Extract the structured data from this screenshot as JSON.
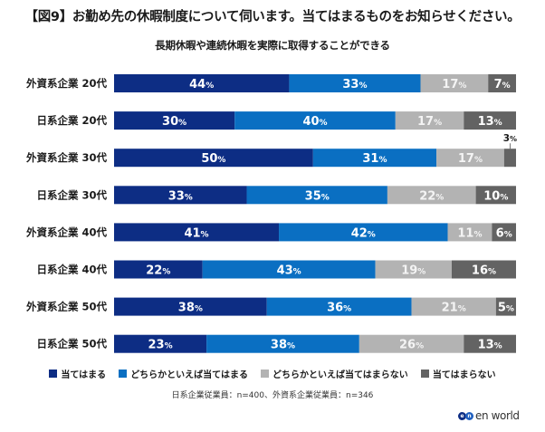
{
  "chart_data": {
    "type": "bar",
    "orientation": "horizontal-stacked-100",
    "title": "【図9】お勤め先の休暇制度について伺います。当てはまるものをお知らせください。",
    "subtitle": "長期休暇や連続休暇を実際に取得することができる",
    "xlabel": "",
    "ylabel": "",
    "xlim": [
      0,
      100
    ],
    "unit": "%",
    "grid": false,
    "legend_position": "bottom",
    "categories": [
      "外資系企業 20代",
      "日系企業 20代",
      "外資系企業 30代",
      "日系企業 30代",
      "外資系企業 40代",
      "日系企業 40代",
      "外資系企業 50代",
      "日系企業 50代"
    ],
    "series": [
      {
        "name": "当てはまる",
        "color": "#0d2d84",
        "values": [
          44,
          30,
          50,
          33,
          41,
          22,
          38,
          23
        ]
      },
      {
        "name": "どちらかといえば当てはまる",
        "color": "#0a6fc2",
        "values": [
          33,
          40,
          31,
          35,
          42,
          43,
          36,
          38
        ]
      },
      {
        "name": "どちらかといえば当てはまらない",
        "color": "#b3b3b3",
        "values": [
          17,
          17,
          17,
          22,
          11,
          19,
          21,
          26
        ]
      },
      {
        "name": "当てはまらない",
        "color": "#636363",
        "values": [
          7,
          13,
          3,
          10,
          6,
          16,
          5,
          13
        ]
      }
    ],
    "annotations": [
      {
        "category_index": 2,
        "series_index": 3,
        "text": "3",
        "note": "label shown above bar with leader line"
      }
    ],
    "footnote": "日系企業従業員：n=400、外資系企業従業員：n=346"
  },
  "pct_suffix": "%",
  "brand": {
    "logo_mark": [
      "e",
      "n"
    ],
    "logo_text": "en world"
  }
}
